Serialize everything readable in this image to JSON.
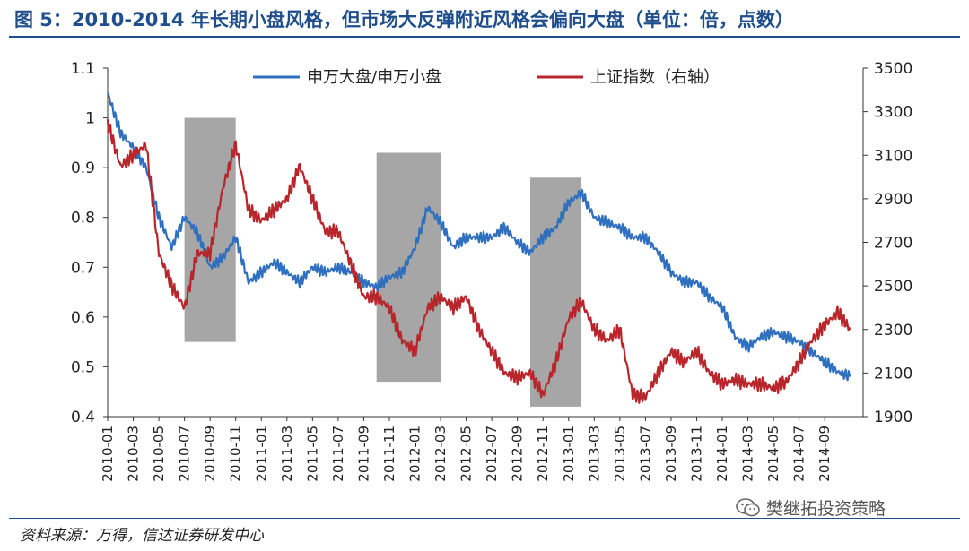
{
  "header": {
    "title": "图 5：2010-2014 年长期小盘风格，但市场大反弹附近风格会偏向大盘（单位：倍，点数）"
  },
  "footer": {
    "source": "资料来源：万得，信达证券研发中心",
    "watermark": "樊继拓投资策略",
    "watermark_icon": "wechat-icon"
  },
  "chart_data": {
    "type": "line",
    "x_labels": [
      "2010-01",
      "2010-03",
      "2010-05",
      "2010-07",
      "2010-09",
      "2010-11",
      "2011-01",
      "2011-03",
      "2011-05",
      "2011-07",
      "2011-09",
      "2011-11",
      "2012-01",
      "2012-03",
      "2012-05",
      "2012-07",
      "2012-09",
      "2012-11",
      "2013-01",
      "2013-03",
      "2013-05",
      "2013-07",
      "2013-09",
      "2013-11",
      "2014-01",
      "2014-03",
      "2014-05",
      "2014-07",
      "2014-09"
    ],
    "y_left": {
      "min": 0.4,
      "max": 1.1,
      "ticks": [
        "0.4",
        "0.5",
        "0.6",
        "0.7",
        "0.8",
        "0.9",
        "1",
        "1.1"
      ]
    },
    "y_right": {
      "min": 1900,
      "max": 3500,
      "ticks": [
        "1900",
        "2100",
        "2300",
        "2500",
        "2700",
        "2900",
        "3100",
        "3300",
        "3500"
      ]
    },
    "shaded_regions": [
      {
        "start": "2010-07",
        "end": "2010-11",
        "ymin": 0.55,
        "ymax": 1.0
      },
      {
        "start": "2011-10",
        "end": "2012-03",
        "ymin": 0.47,
        "ymax": 0.93
      },
      {
        "start": "2012-10",
        "end": "2013-02",
        "ymin": 0.42,
        "ymax": 0.88
      }
    ],
    "legend_position": "top",
    "series": [
      {
        "name": "申万大盘/申万小盘",
        "axis": "left",
        "color": "#2e6fbf",
        "points": [
          [
            "2010-01",
            1.05
          ],
          [
            "2010-02",
            0.97
          ],
          [
            "2010-03",
            0.94
          ],
          [
            "2010-04",
            0.9
          ],
          [
            "2010-05",
            0.8
          ],
          [
            "2010-06",
            0.74
          ],
          [
            "2010-07",
            0.8
          ],
          [
            "2010-08",
            0.77
          ],
          [
            "2010-09",
            0.7
          ],
          [
            "2010-10",
            0.72
          ],
          [
            "2010-11",
            0.76
          ],
          [
            "2010-12",
            0.67
          ],
          [
            "2011-01",
            0.69
          ],
          [
            "2011-02",
            0.71
          ],
          [
            "2011-03",
            0.69
          ],
          [
            "2011-04",
            0.67
          ],
          [
            "2011-05",
            0.7
          ],
          [
            "2011-06",
            0.69
          ],
          [
            "2011-07",
            0.7
          ],
          [
            "2011-08",
            0.69
          ],
          [
            "2011-09",
            0.67
          ],
          [
            "2011-10",
            0.66
          ],
          [
            "2011-11",
            0.68
          ],
          [
            "2011-12",
            0.69
          ],
          [
            "2012-01",
            0.74
          ],
          [
            "2012-02",
            0.82
          ],
          [
            "2012-03",
            0.79
          ],
          [
            "2012-04",
            0.74
          ],
          [
            "2012-05",
            0.76
          ],
          [
            "2012-06",
            0.76
          ],
          [
            "2012-07",
            0.76
          ],
          [
            "2012-08",
            0.78
          ],
          [
            "2012-09",
            0.75
          ],
          [
            "2012-10",
            0.73
          ],
          [
            "2012-11",
            0.76
          ],
          [
            "2012-12",
            0.78
          ],
          [
            "2013-01",
            0.83
          ],
          [
            "2013-02",
            0.85
          ],
          [
            "2013-03",
            0.8
          ],
          [
            "2013-04",
            0.79
          ],
          [
            "2013-05",
            0.78
          ],
          [
            "2013-06",
            0.76
          ],
          [
            "2013-07",
            0.76
          ],
          [
            "2013-08",
            0.73
          ],
          [
            "2013-09",
            0.69
          ],
          [
            "2013-10",
            0.67
          ],
          [
            "2013-11",
            0.67
          ],
          [
            "2013-12",
            0.64
          ],
          [
            "2014-01",
            0.62
          ],
          [
            "2014-02",
            0.56
          ],
          [
            "2014-03",
            0.54
          ],
          [
            "2014-04",
            0.56
          ],
          [
            "2014-05",
            0.57
          ],
          [
            "2014-06",
            0.56
          ],
          [
            "2014-07",
            0.55
          ],
          [
            "2014-08",
            0.53
          ],
          [
            "2014-09",
            0.51
          ],
          [
            "2014-10",
            0.49
          ],
          [
            "2014-11",
            0.48
          ]
        ]
      },
      {
        "name": "上证指数（右轴）",
        "axis": "right",
        "color": "#b8262b",
        "points": [
          [
            "2010-01",
            3250
          ],
          [
            "2010-02",
            3050
          ],
          [
            "2010-03",
            3100
          ],
          [
            "2010-04",
            3150
          ],
          [
            "2010-05",
            2650
          ],
          [
            "2010-06",
            2500
          ],
          [
            "2010-07",
            2400
          ],
          [
            "2010-08",
            2650
          ],
          [
            "2010-09",
            2650
          ],
          [
            "2010-10",
            2950
          ],
          [
            "2010-11",
            3150
          ],
          [
            "2010-12",
            2850
          ],
          [
            "2011-01",
            2800
          ],
          [
            "2011-02",
            2850
          ],
          [
            "2011-03",
            2900
          ],
          [
            "2011-04",
            3050
          ],
          [
            "2011-05",
            2900
          ],
          [
            "2011-06",
            2750
          ],
          [
            "2011-07",
            2750
          ],
          [
            "2011-08",
            2600
          ],
          [
            "2011-09",
            2450
          ],
          [
            "2011-10",
            2450
          ],
          [
            "2011-11",
            2400
          ],
          [
            "2011-12",
            2250
          ],
          [
            "2012-01",
            2200
          ],
          [
            "2012-02",
            2400
          ],
          [
            "2012-03",
            2450
          ],
          [
            "2012-04",
            2400
          ],
          [
            "2012-05",
            2450
          ],
          [
            "2012-06",
            2300
          ],
          [
            "2012-07",
            2200
          ],
          [
            "2012-08",
            2100
          ],
          [
            "2012-09",
            2080
          ],
          [
            "2012-10",
            2100
          ],
          [
            "2012-11",
            2000
          ],
          [
            "2012-12",
            2150
          ],
          [
            "2013-01",
            2350
          ],
          [
            "2013-02",
            2430
          ],
          [
            "2013-03",
            2300
          ],
          [
            "2013-04",
            2250
          ],
          [
            "2013-05",
            2300
          ],
          [
            "2013-06",
            2000
          ],
          [
            "2013-07",
            1990
          ],
          [
            "2013-08",
            2100
          ],
          [
            "2013-09",
            2200
          ],
          [
            "2013-10",
            2150
          ],
          [
            "2013-11",
            2200
          ],
          [
            "2013-12",
            2100
          ],
          [
            "2014-01",
            2050
          ],
          [
            "2014-02",
            2070
          ],
          [
            "2014-03",
            2050
          ],
          [
            "2014-04",
            2050
          ],
          [
            "2014-05",
            2030
          ],
          [
            "2014-06",
            2060
          ],
          [
            "2014-07",
            2150
          ],
          [
            "2014-08",
            2250
          ],
          [
            "2014-09",
            2320
          ],
          [
            "2014-10",
            2380
          ],
          [
            "2014-11",
            2300
          ]
        ]
      }
    ]
  }
}
